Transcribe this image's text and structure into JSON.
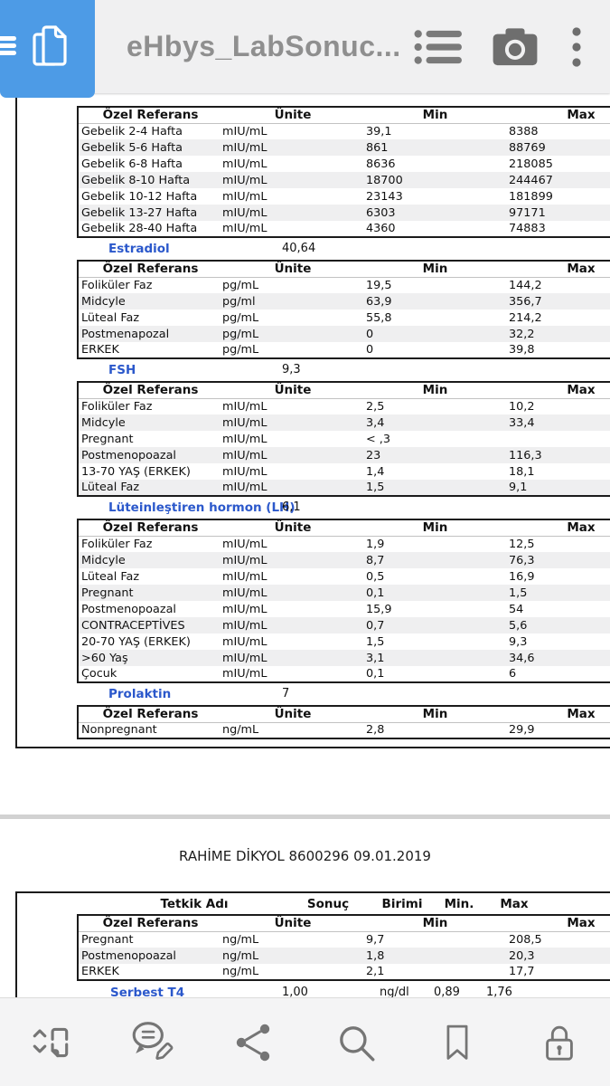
{
  "colors": {
    "accent_blue": "#4d9be6",
    "link_blue": "#2b58cb",
    "toolbar_gray": "#f0f0f1",
    "table_border": "#1b1b1b",
    "row_stripe": "#efeff0"
  },
  "topbar": {
    "title": "eHbys_LabSonuc...",
    "icons": [
      "menu-icon",
      "page-copy-icon",
      "outline-list-icon",
      "camera-icon",
      "overflow-menu-icon"
    ]
  },
  "bottombar": {
    "icons": [
      "scroll-direction-icon",
      "annotate-icon",
      "share-icon",
      "search-icon",
      "bookmark-icon",
      "lock-icon"
    ]
  },
  "doc": {
    "page1": {
      "sections": [
        {
          "title": "",
          "value": "",
          "table": {
            "headers": [
              "Özel Referans",
              "Ünite",
              "Min",
              "Max"
            ],
            "rows": [
              [
                "Gebelik 2-4 Hafta",
                "mIU/mL",
                "39,1",
                "8388"
              ],
              [
                "Gebelik 5-6 Hafta",
                "mIU/mL",
                "861",
                "88769"
              ],
              [
                "Gebelik 6-8 Hafta",
                "mIU/mL",
                "8636",
                "218085"
              ],
              [
                "Gebelik 8-10 Hafta",
                "mIU/mL",
                "18700",
                "244467"
              ],
              [
                "Gebelik 10-12 Hafta",
                "mIU/mL",
                "23143",
                "181899"
              ],
              [
                "Gebelik 13-27 Hafta",
                "mIU/mL",
                "6303",
                "97171"
              ],
              [
                "Gebelik 28-40 Hafta",
                "mIU/mL",
                "4360",
                "74883"
              ]
            ]
          }
        },
        {
          "title": "Estradiol",
          "value": "40,64",
          "table": {
            "headers": [
              "Özel Referans",
              "Ünite",
              "Min",
              "Max"
            ],
            "rows": [
              [
                "Foliküler Faz",
                "pg/mL",
                "19,5",
                "144,2"
              ],
              [
                "Midcyle",
                "pg/ml",
                "63,9",
                "356,7"
              ],
              [
                "Lüteal Faz",
                "pg/mL",
                "55,8",
                "214,2"
              ],
              [
                "Postmenapozal",
                "pg/mL",
                "0",
                "32,2"
              ],
              [
                "ERKEK",
                "pg/mL",
                "0",
                "39,8"
              ]
            ]
          }
        },
        {
          "title": "FSH",
          "value": "9,3",
          "table": {
            "headers": [
              "Özel Referans",
              "Ünite",
              "Min",
              "Max"
            ],
            "rows": [
              [
                "Foliküler Faz",
                "mIU/mL",
                "2,5",
                "10,2"
              ],
              [
                "Midcyle",
                "mIU/mL",
                "3,4",
                "33,4"
              ],
              [
                "Pregnant",
                "mIU/mL",
                "< ,3",
                ""
              ],
              [
                "Postmenopoazal",
                "mIU/mL",
                "23",
                "116,3"
              ],
              [
                "13-70 YAŞ (ERKEK)",
                "mIU/mL",
                "1,4",
                "18,1"
              ],
              [
                "Lüteal Faz",
                "mIU/mL",
                "1,5",
                "9,1"
              ]
            ]
          }
        },
        {
          "title": "Lüteinleştiren hormon (LH)",
          "value": "6,1",
          "table": {
            "headers": [
              "Özel Referans",
              "Ünite",
              "Min",
              "Max"
            ],
            "rows": [
              [
                "Foliküler Faz",
                "mIU/mL",
                "1,9",
                "12,5"
              ],
              [
                "Midcyle",
                "mIU/mL",
                "8,7",
                "76,3"
              ],
              [
                "Lüteal Faz",
                "mIU/mL",
                "0,5",
                "16,9"
              ],
              [
                "Pregnant",
                "mIU/mL",
                "0,1",
                "1,5"
              ],
              [
                "Postmenopoazal",
                "mIU/mL",
                "15,9",
                "54"
              ],
              [
                "CONTRACEPTİVES",
                "mIU/mL",
                "0,7",
                "5,6"
              ],
              [
                "20-70 YAŞ (ERKEK)",
                "mIU/mL",
                "1,5",
                "9,3"
              ],
              [
                ">60 Yaş",
                "mIU/mL",
                "3,1",
                "34,6"
              ],
              [
                "Çocuk",
                "mIU/mL",
                "0,1",
                "6"
              ]
            ]
          }
        },
        {
          "title": "Prolaktin",
          "value": "7",
          "table": {
            "headers": [
              "Özel Referans",
              "Ünite",
              "Min",
              "Max"
            ],
            "rows": [
              [
                "Nonpregnant",
                "ng/mL",
                "2,8",
                "29,9"
              ]
            ]
          }
        }
      ]
    },
    "page2": {
      "patient_header": "RAHİME DİKYOL 8600296 09.01.2019",
      "outer_headers": [
        "Tetkik Adı",
        "Sonuç",
        "Birimi",
        "Min.",
        "Max"
      ],
      "section": {
        "table": {
          "headers": [
            "Özel Referans",
            "Ünite",
            "Min",
            "Max"
          ],
          "rows": [
            [
              "Pregnant",
              "ng/mL",
              "9,7",
              "208,5"
            ],
            [
              "Postmenopoazal",
              "ng/mL",
              "1,8",
              "20,3"
            ],
            [
              "ERKEK",
              "ng/mL",
              "2,1",
              "17,7"
            ]
          ]
        }
      },
      "partial_row": {
        "name": "Serbest T4",
        "sonuc": "1,00",
        "birimi": "ng/dl",
        "min": "0,89",
        "max": "1,76"
      }
    }
  }
}
